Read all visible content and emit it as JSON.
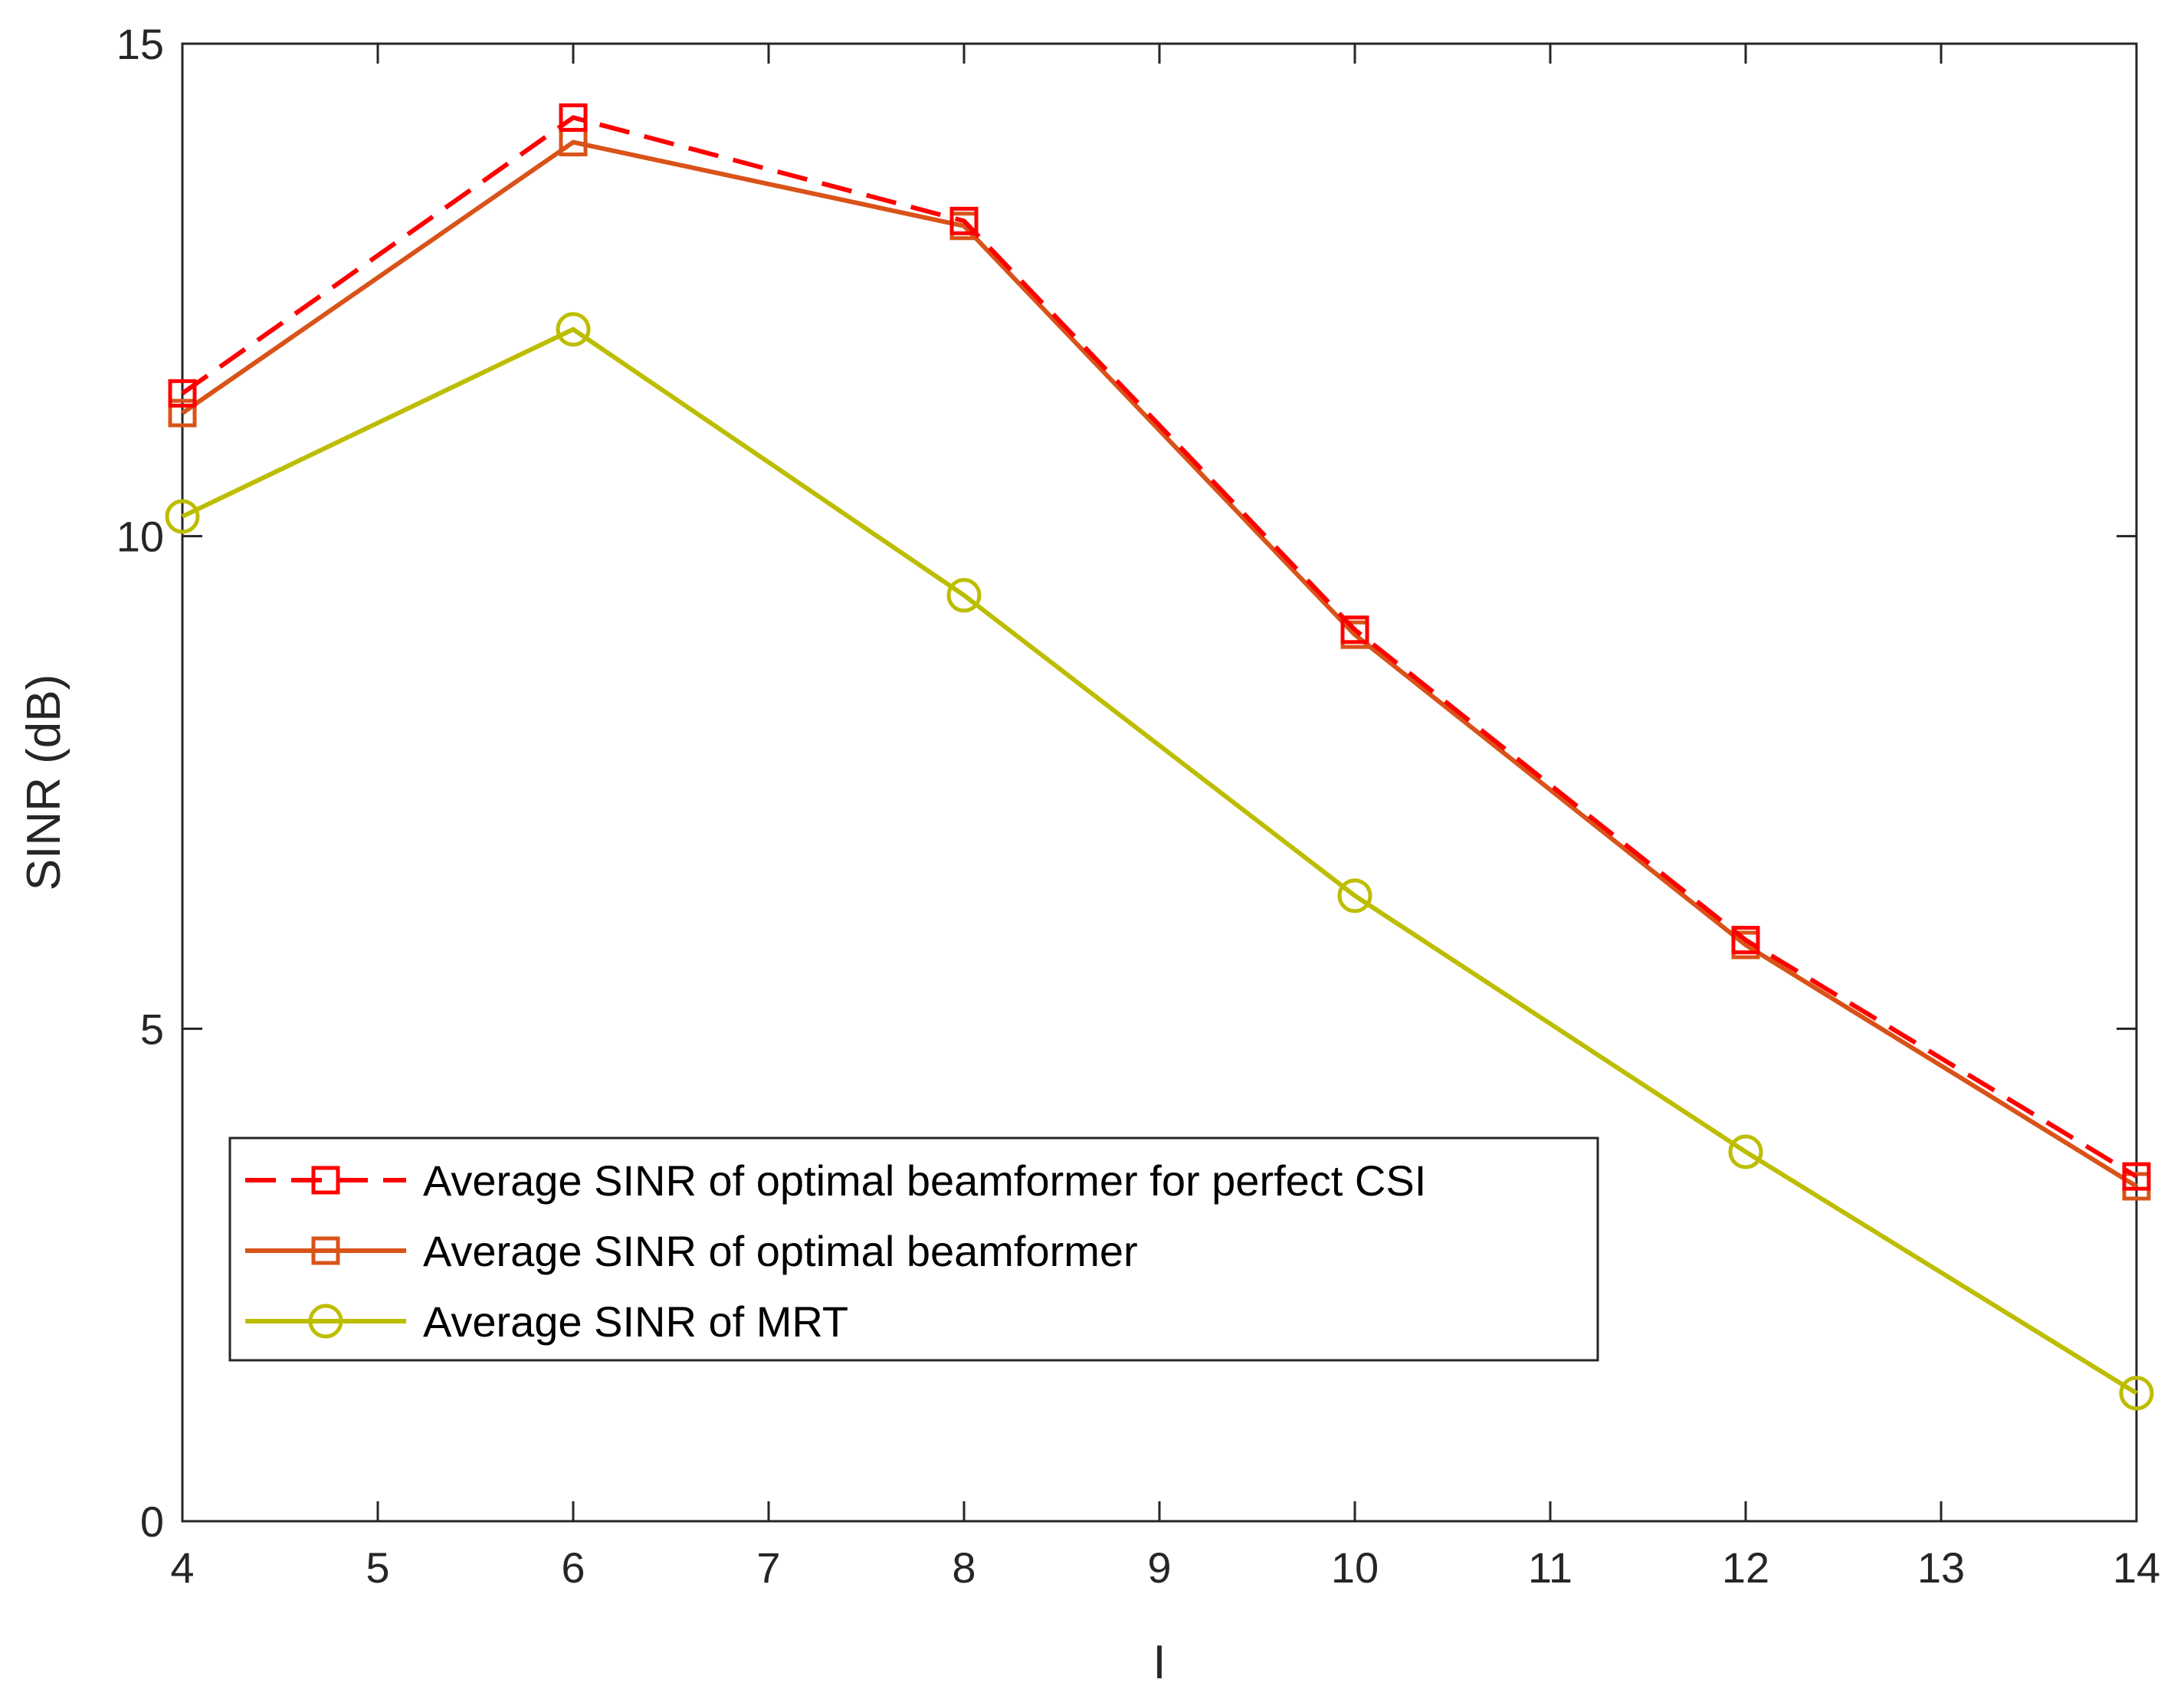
{
  "chart_data": {
    "type": "line",
    "title": "",
    "xlabel": "I",
    "ylabel": "SINR (dB)",
    "xlim": [
      4,
      14
    ],
    "ylim": [
      0,
      15
    ],
    "xticks": [
      4,
      5,
      6,
      7,
      8,
      9,
      10,
      11,
      12,
      13,
      14
    ],
    "yticks": [
      0,
      5,
      10,
      15
    ],
    "x_tick_labels": [
      "4",
      "5",
      "6",
      "7",
      "8",
      "9",
      "10",
      "11",
      "12",
      "13",
      "14"
    ],
    "y_tick_labels": [
      "0",
      "5",
      "10",
      "15"
    ],
    "grid": false,
    "legend_position": "bottom-left",
    "x": [
      4,
      6,
      8,
      10,
      12,
      14
    ],
    "series": [
      {
        "name": "Average SINR of optimal beamformer for perfect CSI",
        "values": [
          11.45,
          14.25,
          13.2,
          9.05,
          5.9,
          3.5
        ],
        "color": "#ff0000",
        "line_style": "dashed",
        "marker": "square"
      },
      {
        "name": "Average SINR of optimal beamformer",
        "values": [
          11.25,
          14.0,
          13.15,
          9.0,
          5.85,
          3.4
        ],
        "color": "#d95319",
        "line_style": "solid",
        "marker": "square"
      },
      {
        "name": "Average SINR of MRT",
        "values": [
          10.2,
          12.1,
          9.4,
          6.35,
          3.75,
          1.3
        ],
        "color": "#bdbd00",
        "line_style": "solid",
        "marker": "circle"
      }
    ]
  }
}
